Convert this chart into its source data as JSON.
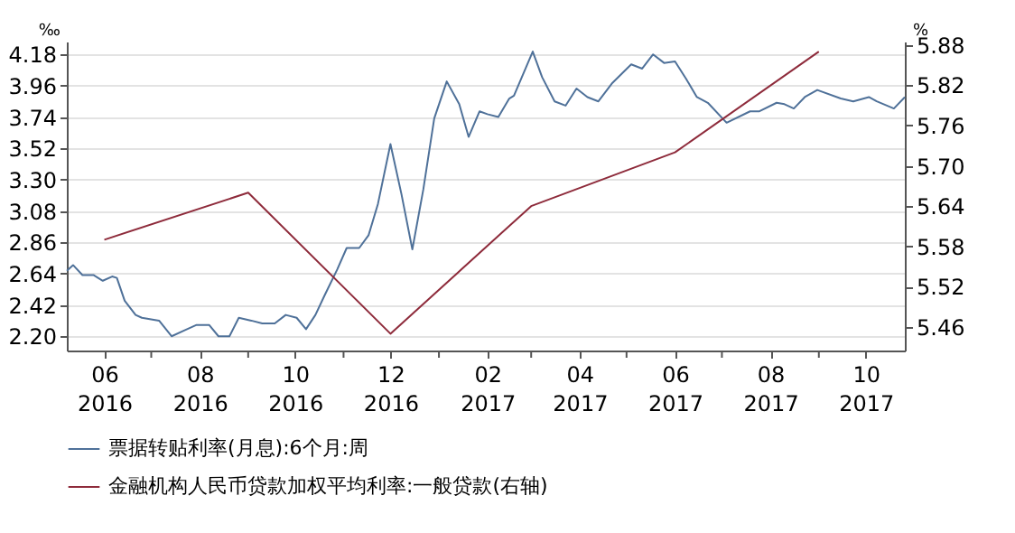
{
  "chart_data": {
    "type": "line",
    "ylabel": "‰",
    "y2label": "%",
    "xlim": [
      "2016-05-08",
      "2017-10-26"
    ],
    "xticks": [
      {
        "value": "2016-06",
        "label": "06\n2016"
      },
      {
        "value": "2016-07",
        "label": null
      },
      {
        "value": "2016-08",
        "label": "08\n2016"
      },
      {
        "value": "2016-09",
        "label": null
      },
      {
        "value": "2016-10",
        "label": "10\n2016"
      },
      {
        "value": "2016-11",
        "label": null
      },
      {
        "value": "2016-12",
        "label": "12\n2016"
      },
      {
        "value": "2017-01",
        "label": null
      },
      {
        "value": "2017-02",
        "label": "02\n2017"
      },
      {
        "value": "2017-03",
        "label": null
      },
      {
        "value": "2017-04",
        "label": "04\n2017"
      },
      {
        "value": "2017-05",
        "label": null
      },
      {
        "value": "2017-06",
        "label": "06\n2017"
      },
      {
        "value": "2017-07",
        "label": null
      },
      {
        "value": "2017-08",
        "label": "08\n2017"
      },
      {
        "value": "2017-09",
        "label": null
      },
      {
        "value": "2017-10",
        "label": "10\n2017"
      }
    ],
    "ylim": [
      2.1,
      4.27
    ],
    "yticks": [
      {
        "value": 2.2,
        "label": "2.20"
      },
      2.42,
      2.64,
      2.86,
      3.08,
      {
        "value": 3.3,
        "label": "3.30"
      },
      3.52,
      3.74,
      3.96,
      4.18
    ],
    "y2lim": [
      5.425,
      5.885
    ],
    "y2ticks": [
      5.46,
      5.52,
      5.58,
      5.64,
      {
        "value": 5.7,
        "label": "5.70"
      },
      5.76,
      5.82,
      5.88
    ],
    "grid": "y",
    "legend": "bottom",
    "line_style": "solid",
    "marker": "none",
    "series": [
      {
        "name": "票据转贴利率(月息):6个月:周",
        "color": "#4f7199",
        "x": [
          "2016-05-08",
          "2016-05-12",
          "2016-05-18",
          "2016-05-25",
          "2016-05-31",
          "2016-06-06",
          "2016-06-09",
          "2016-06-14",
          "2016-06-21",
          "2016-06-25",
          "2016-07-06",
          "2016-07-14",
          "2016-07-22",
          "2016-07-30",
          "2016-08-07",
          "2016-08-13",
          "2016-08-20",
          "2016-08-26",
          "2016-09-03",
          "2016-09-10",
          "2016-09-18",
          "2016-09-25",
          "2016-10-02",
          "2016-10-08",
          "2016-10-14",
          "2016-10-20",
          "2016-10-28",
          "2016-11-03",
          "2016-11-11",
          "2016-11-17",
          "2016-11-23",
          "2016-12-01",
          "2016-12-08",
          "2016-12-15",
          "2016-12-22",
          "2016-12-29",
          "2017-01-06",
          "2017-01-14",
          "2017-01-20",
          "2017-01-27",
          "2017-02-01",
          "2017-02-08",
          "2017-02-15",
          "2017-02-18",
          "2017-03-02",
          "2017-03-08",
          "2017-03-16",
          "2017-03-23",
          "2017-03-30",
          "2017-04-06",
          "2017-04-13",
          "2017-04-22",
          "2017-05-04",
          "2017-05-11",
          "2017-05-18",
          "2017-05-25",
          "2017-06-01",
          "2017-06-08",
          "2017-06-15",
          "2017-06-22",
          "2017-07-04",
          "2017-07-19",
          "2017-07-25",
          "2017-08-05",
          "2017-08-10",
          "2017-08-16",
          "2017-08-23",
          "2017-08-31",
          "2017-09-15",
          "2017-09-23",
          "2017-10-03",
          "2017-10-08",
          "2017-10-19",
          "2017-10-26"
        ],
        "values": [
          2.66,
          2.7,
          2.63,
          2.63,
          2.59,
          2.62,
          2.61,
          2.45,
          2.35,
          2.33,
          2.31,
          2.2,
          2.24,
          2.28,
          2.28,
          2.2,
          2.2,
          2.33,
          2.31,
          2.29,
          2.29,
          2.35,
          2.33,
          2.25,
          2.35,
          2.49,
          2.67,
          2.82,
          2.82,
          2.91,
          3.13,
          3.55,
          3.2,
          2.81,
          3.23,
          3.73,
          3.99,
          3.83,
          3.6,
          3.78,
          3.76,
          3.74,
          3.87,
          3.89,
          4.2,
          4.02,
          3.85,
          3.82,
          3.94,
          3.88,
          3.85,
          3.98,
          4.11,
          4.08,
          4.18,
          4.12,
          4.13,
          4.01,
          3.88,
          3.84,
          3.7,
          3.78,
          3.78,
          3.84,
          3.83,
          3.8,
          3.88,
          3.93,
          3.87,
          3.85,
          3.88,
          3.85,
          3.8,
          3.88
        ]
      },
      {
        "name": "金融机构人民币贷款加权平均利率:一般贷款(右轴)",
        "color": "#8e2b3b",
        "axis": "y2",
        "x": [
          "2016-06-01",
          "2016-09-01",
          "2016-12-01",
          "2017-03-01",
          "2017-06-01",
          "2017-09-01"
        ],
        "values": [
          5.59,
          5.66,
          5.45,
          5.64,
          5.72,
          5.87
        ]
      }
    ]
  }
}
